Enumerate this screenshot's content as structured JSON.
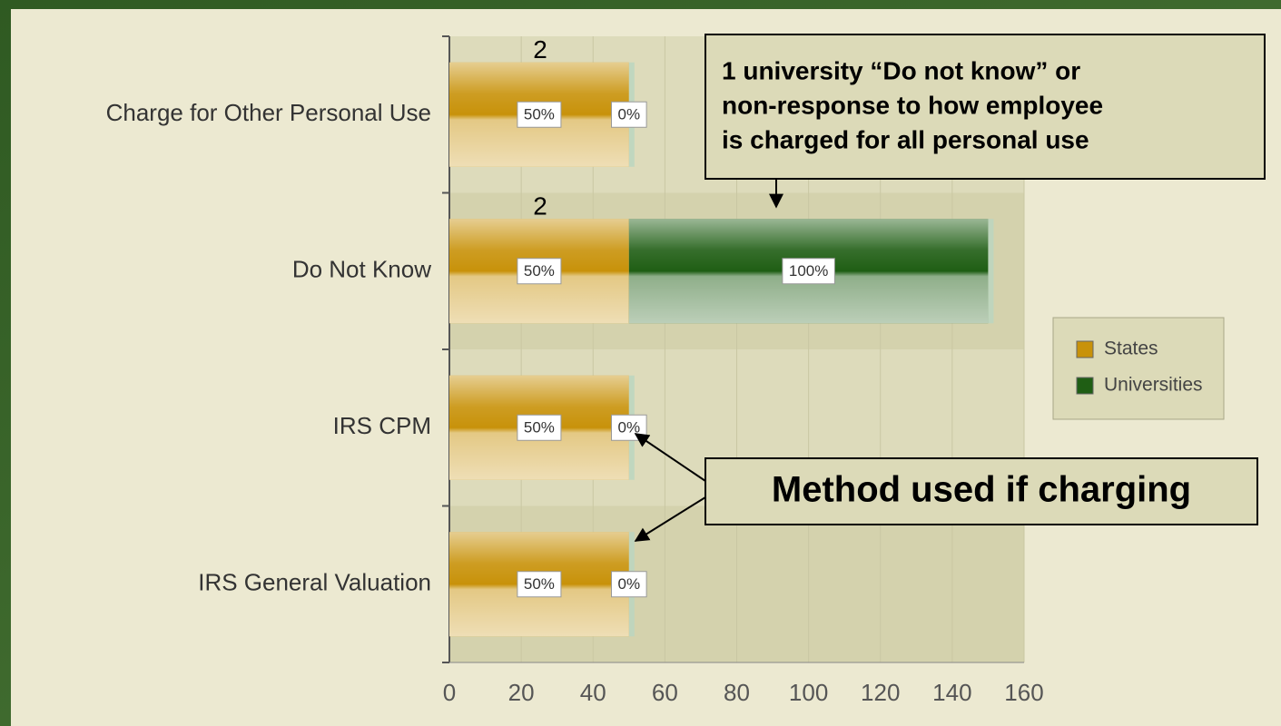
{
  "chart_data": {
    "type": "hbar_stacked",
    "categories": [
      "Charge for Other Personal Use",
      "Do Not Know",
      "IRS CPM",
      "IRS General Valuation"
    ],
    "series": [
      {
        "name": "States",
        "color": "#c8920a",
        "values": [
          50,
          50,
          50,
          50
        ],
        "value_labels": [
          "50%",
          "50%",
          "50%",
          "50%"
        ]
      },
      {
        "name": "Universities",
        "color": "#1f5e14",
        "values": [
          0,
          100,
          0,
          0
        ],
        "value_labels": [
          "0%",
          "100%",
          "0%",
          "0%"
        ]
      }
    ],
    "xlim": [
      0,
      160
    ],
    "xticks": [
      0,
      20,
      40,
      60,
      80,
      100,
      120,
      140,
      160
    ],
    "grid": true,
    "legend": "right",
    "annotations": [
      {
        "text": "2",
        "category": 0
      },
      {
        "text": "2",
        "category": 1
      }
    ],
    "callout": [
      "1 university “Do not know” or",
      "non-response to how employee",
      "is charged for all personal use"
    ],
    "method_note": "Method used if charging"
  }
}
